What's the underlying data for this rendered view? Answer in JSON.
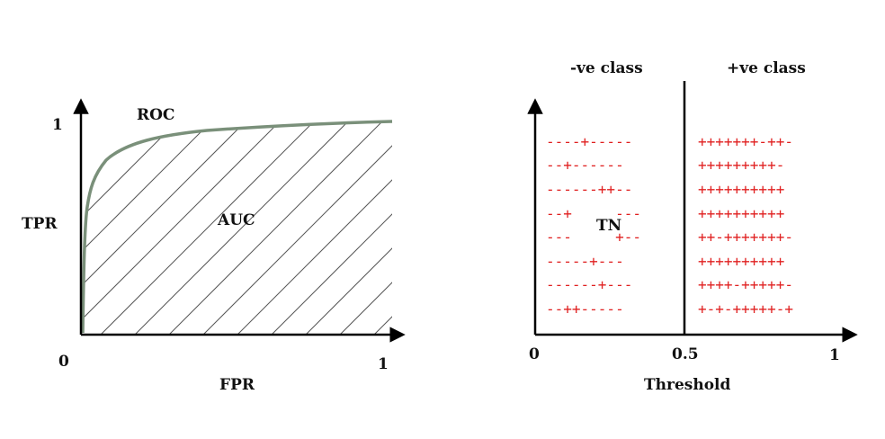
{
  "roc_panel": {
    "title": "ROC",
    "area_label": "AUC",
    "y_axis_label": "TPR",
    "x_axis_label": "FPR",
    "y_tick_top": "1",
    "x_tick_origin": "0",
    "x_tick_end": "1",
    "curve_color": "#7a907a",
    "hatch_color": "#555555"
  },
  "threshold_panel": {
    "left_header": "-ve class",
    "right_header": "+ve class",
    "region_label": "TN",
    "x_axis_label": "Threshold",
    "tick_origin": "0",
    "tick_mid": "0.5",
    "tick_end": "1",
    "symbol_color": "#e02020",
    "left_rows": [
      "----+-----",
      "--+------",
      "------++--",
      "--+     ---",
      "---     +--",
      "-----+---",
      "------+---",
      "--++-----"
    ],
    "right_rows": [
      "+++++++-++-",
      "+++++++++-",
      "++++++++++",
      "++++++++++",
      "++-+++++++-",
      "++++++++++",
      "++++-+++++-",
      "+-+-+++++-+"
    ]
  }
}
